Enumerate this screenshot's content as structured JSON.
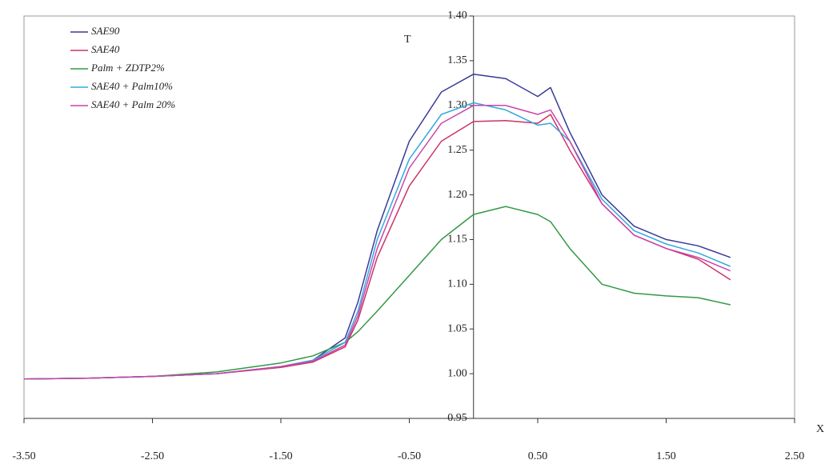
{
  "chart_data": {
    "type": "line",
    "y_label": "T",
    "x_label": "X",
    "x": [
      -3.5,
      -3,
      -2.5,
      -2,
      -1.5,
      -1.25,
      -1,
      -0.9,
      -0.75,
      -0.5,
      -0.25,
      0,
      0.25,
      0.5,
      0.6,
      0.75,
      1,
      1.25,
      1.5,
      1.75,
      2
    ],
    "series": [
      {
        "name": "SAE90",
        "color": "#3a3a9a",
        "values": [
          0.994,
          0.995,
          0.997,
          1.0,
          1.008,
          1.015,
          1.04,
          1.08,
          1.16,
          1.26,
          1.315,
          1.335,
          1.33,
          1.31,
          1.32,
          1.27,
          1.2,
          1.165,
          1.15,
          1.143,
          1.13
        ]
      },
      {
        "name": "SAE40",
        "color": "#cc3366",
        "values": [
          0.994,
          0.995,
          0.997,
          1.0,
          1.007,
          1.013,
          1.03,
          1.06,
          1.13,
          1.21,
          1.26,
          1.282,
          1.283,
          1.28,
          1.29,
          1.25,
          1.19,
          1.155,
          1.14,
          1.128,
          1.105
        ]
      },
      {
        "name": "Palm + ZDTP2%",
        "color": "#339944",
        "values": [
          0.994,
          0.995,
          0.997,
          1.002,
          1.012,
          1.02,
          1.035,
          1.047,
          1.07,
          1.11,
          1.15,
          1.178,
          1.187,
          1.178,
          1.17,
          1.14,
          1.1,
          1.09,
          1.087,
          1.085,
          1.077
        ]
      },
      {
        "name": "SAE40 + Palm10%",
        "color": "#33aadd",
        "values": [
          0.994,
          0.995,
          0.997,
          1.0,
          1.008,
          1.015,
          1.035,
          1.07,
          1.15,
          1.24,
          1.29,
          1.303,
          1.295,
          1.278,
          1.28,
          1.26,
          1.195,
          1.16,
          1.145,
          1.135,
          1.12
        ]
      },
      {
        "name": "SAE40 + Palm 20%",
        "color": "#cc44aa",
        "values": [
          0.994,
          0.995,
          0.997,
          1.0,
          1.008,
          1.014,
          1.032,
          1.065,
          1.14,
          1.23,
          1.28,
          1.3,
          1.3,
          1.29,
          1.295,
          1.26,
          1.19,
          1.155,
          1.14,
          1.13,
          1.115
        ]
      }
    ],
    "xlim": [
      -3.5,
      2.5
    ],
    "ylim": [
      0.95,
      1.4
    ],
    "xticks": [
      {
        "value": -3.5,
        "label": "-3.50"
      },
      {
        "value": -2.5,
        "label": "-2.50"
      },
      {
        "value": -1.5,
        "label": "-1.50"
      },
      {
        "value": -0.5,
        "label": "-0.50"
      },
      {
        "value": 0.5,
        "label": "0.50"
      },
      {
        "value": 1.5,
        "label": "1.50"
      },
      {
        "value": 2.5,
        "label": "2.50"
      }
    ],
    "yticks": [
      {
        "value": 0.95,
        "label": "0.95"
      },
      {
        "value": 1.0,
        "label": "1.00"
      },
      {
        "value": 1.05,
        "label": "1.05"
      },
      {
        "value": 1.1,
        "label": "1.10"
      },
      {
        "value": 1.15,
        "label": "1.15"
      },
      {
        "value": 1.2,
        "label": "1.20"
      },
      {
        "value": 1.25,
        "label": "1.25"
      },
      {
        "value": 1.3,
        "label": "1.30"
      },
      {
        "value": 1.35,
        "label": "1.35"
      },
      {
        "value": 1.4,
        "label": "1.40"
      }
    ],
    "legend": "top-left"
  }
}
